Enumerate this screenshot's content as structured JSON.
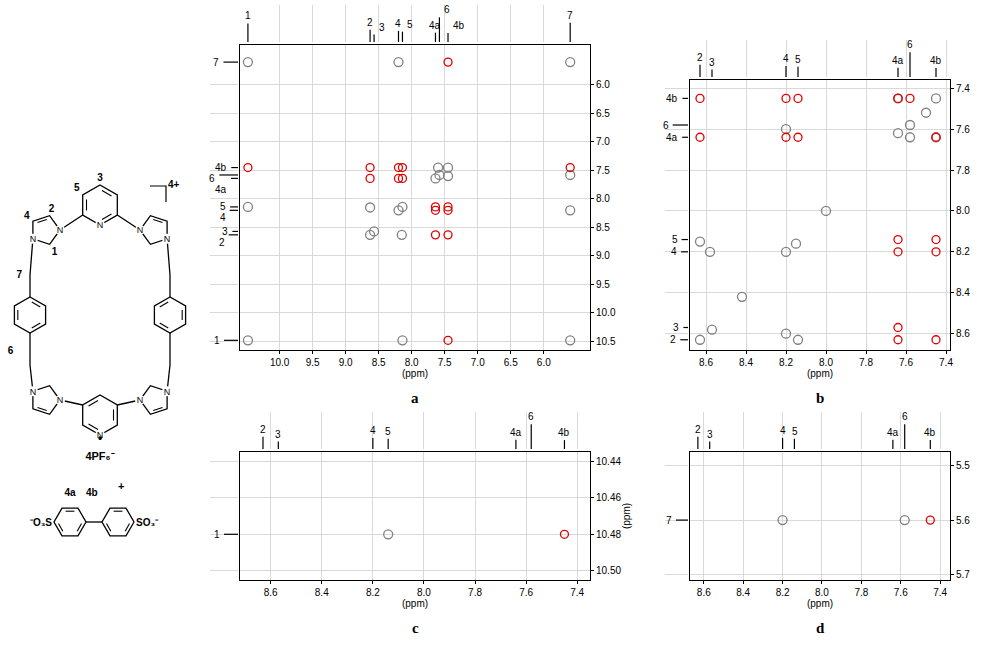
{
  "structure": {
    "heteroatom": "N",
    "host_labels": [
      "1",
      "2",
      "3",
      "4",
      "5",
      "6",
      "7"
    ],
    "charge": "4+",
    "dot": "•",
    "counterion": "4PF₆⁻",
    "guest_labels": [
      "4a",
      "4b"
    ],
    "guest_charge": "+",
    "guest_left": "⁻O₃S",
    "guest_right": "SO₃⁻"
  },
  "spectrum": {
    "peaks": [
      {
        "label": "1",
        "ppm": 10.48,
        "height": 0.75
      },
      {
        "label": "2",
        "ppm": 8.63,
        "height": 0.5
      },
      {
        "label": "3",
        "ppm": 8.57,
        "height": 0.3
      },
      {
        "label": "4",
        "ppm": 8.2,
        "height": 0.45
      },
      {
        "label": "5",
        "ppm": 8.14,
        "height": 0.42
      },
      {
        "label": "4a",
        "ppm": 7.64,
        "height": 0.38
      },
      {
        "label": "6",
        "ppm": 7.58,
        "height": 1.0
      },
      {
        "label": "4b",
        "ppm": 7.45,
        "height": 0.36
      },
      {
        "label": "7",
        "ppm": 5.6,
        "height": 0.78
      }
    ]
  },
  "chart_data": [
    {
      "type": "scatter",
      "title": "a",
      "xlabel": "(ppm)",
      "grid": true,
      "xlim": [
        10.6,
        5.3
      ],
      "xticks": [
        {
          "value": 10,
          "label": "10.0"
        },
        9.5,
        {
          "value": 9,
          "label": "9.0"
        },
        8.5,
        {
          "value": 8,
          "label": "8.0"
        },
        7.5,
        {
          "value": 7,
          "label": "7.0"
        },
        6.5,
        {
          "value": 6,
          "label": "6.0"
        }
      ],
      "ylim": [
        10.65,
        5.3
      ],
      "yticks": [
        {
          "value": 6,
          "label": "6.0"
        },
        6.5,
        {
          "value": 7,
          "label": "7.0"
        },
        7.5,
        {
          "value": 8,
          "label": "8.0"
        },
        8.5,
        {
          "value": 9,
          "label": "9.0"
        },
        9.5,
        {
          "value": 10,
          "label": "10.0"
        },
        10.5
      ],
      "series": [
        {
          "color": "#808080",
          "marker": "circle-open",
          "x": [
            10.48,
            8.63,
            8.57,
            8.2,
            8.14,
            7.64,
            7.58,
            7.45,
            5.6,
            10.48,
            5.6,
            8.14,
            10.48,
            8.2,
            5.6,
            5.6,
            8.63,
            8.15,
            7.6,
            7.45
          ],
          "y": [
            10.48,
            8.63,
            8.57,
            8.2,
            8.14,
            7.64,
            7.58,
            7.45,
            5.6,
            5.6,
            10.48,
            10.48,
            8.14,
            5.6,
            8.2,
            7.58,
            8.15,
            8.63,
            7.45,
            7.6
          ]
        },
        {
          "color": "#e00000",
          "marker": "circle-open",
          "x": [
            7.45,
            10.48,
            7.45,
            5.6,
            8.63,
            8.63,
            8.2,
            8.2,
            8.14,
            8.14,
            7.64,
            7.45,
            7.64,
            7.45,
            7.64,
            7.45
          ],
          "y": [
            10.48,
            7.45,
            5.6,
            7.45,
            7.64,
            7.45,
            7.64,
            7.45,
            7.64,
            7.45,
            8.63,
            8.63,
            8.2,
            8.2,
            8.14,
            8.14
          ]
        }
      ]
    },
    {
      "type": "scatter",
      "title": "b",
      "xlabel": "(ppm)",
      "grid": true,
      "xlim": [
        8.68,
        7.38
      ],
      "xticks": [
        8.6,
        8.4,
        8.2,
        {
          "value": 8,
          "label": "8.0"
        },
        7.8,
        7.6,
        7.4
      ],
      "ylim": [
        8.68,
        7.36
      ],
      "yticks": [
        7.4,
        7.6,
        7.8,
        {
          "value": 8,
          "label": "8.0"
        },
        8.2,
        8.4,
        8.6
      ],
      "series": [
        {
          "color": "#808080",
          "marker": "circle-open",
          "x": [
            8.63,
            8.57,
            8.2,
            8.15,
            8.0,
            8.42,
            7.64,
            7.58,
            7.45,
            7.5,
            8.63,
            8.14,
            8.2,
            8.58,
            7.64,
            7.45,
            7.58,
            8.2
          ],
          "y": [
            8.63,
            8.58,
            8.2,
            8.16,
            8.0,
            8.42,
            7.62,
            7.58,
            7.45,
            7.52,
            8.15,
            8.63,
            8.6,
            8.2,
            7.45,
            7.64,
            7.64,
            7.6
          ]
        },
        {
          "color": "#e00000",
          "marker": "circle-open",
          "x": [
            8.63,
            8.63,
            8.2,
            8.2,
            8.14,
            8.14,
            7.64,
            7.45,
            7.64,
            7.45,
            7.64,
            7.45,
            7.64,
            7.45,
            7.64,
            7.58
          ],
          "y": [
            7.64,
            7.45,
            7.64,
            7.45,
            7.64,
            7.45,
            8.63,
            8.63,
            8.2,
            8.2,
            8.14,
            8.14,
            7.45,
            7.64,
            8.57,
            7.45
          ]
        }
      ]
    },
    {
      "type": "scatter",
      "title": "c",
      "xlabel": "(ppm)",
      "ylabel": "(ppm)",
      "grid": true,
      "xlim": [
        8.72,
        7.35
      ],
      "xticks": [
        8.6,
        8.4,
        8.2,
        {
          "value": 8,
          "label": "8.0"
        },
        7.8,
        7.6,
        7.4
      ],
      "ylim": [
        10.505,
        10.435
      ],
      "yticks": [
        10.44,
        10.46,
        10.48,
        {
          "value": 10.5,
          "label": "10.50"
        }
      ],
      "series": [
        {
          "color": "#808080",
          "marker": "circle-open",
          "x": [
            8.14
          ],
          "y": [
            10.48
          ]
        },
        {
          "color": "#e00000",
          "marker": "circle-open",
          "x": [
            7.45
          ],
          "y": [
            10.48
          ]
        }
      ]
    },
    {
      "type": "scatter",
      "title": "d",
      "xlabel": "(ppm)",
      "grid": true,
      "xlim": [
        8.67,
        7.35
      ],
      "xticks": [
        8.6,
        8.4,
        8.2,
        {
          "value": 8,
          "label": "8.0"
        },
        7.8,
        7.6,
        7.4
      ],
      "ylim": [
        5.71,
        5.475
      ],
      "yticks": [
        5.5,
        5.6,
        5.7
      ],
      "series": [
        {
          "color": "#808080",
          "marker": "circle-open",
          "x": [
            8.2,
            7.58
          ],
          "y": [
            5.6,
            5.6
          ]
        },
        {
          "color": "#e00000",
          "marker": "circle-open",
          "x": [
            7.45
          ],
          "y": [
            5.6
          ]
        }
      ]
    }
  ]
}
